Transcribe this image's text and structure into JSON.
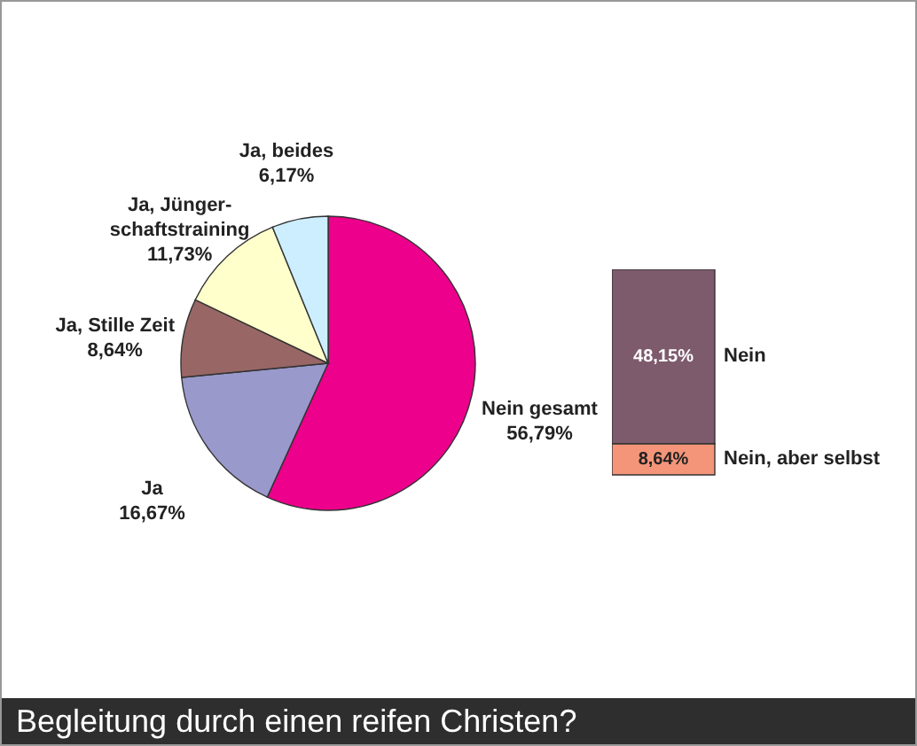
{
  "chart_data": [
    {
      "type": "pie",
      "title": "Begleitung durch einen reifen Christen?",
      "categories": [
        "Nein gesamt",
        "Ja",
        "Ja, Stille Zeit",
        "Ja, Jünger-schaftstraining",
        "Ja, beides"
      ],
      "values": [
        56.79,
        16.67,
        8.64,
        11.73,
        6.17
      ],
      "value_labels": [
        "56,79%",
        "16,67%",
        "8,64%",
        "11,73%",
        "6,17%"
      ],
      "colors": [
        "#ec008c",
        "#9999cc",
        "#996666",
        "#ffffcc",
        "#cceeff"
      ]
    },
    {
      "type": "bar",
      "stacked": true,
      "categories": [
        null
      ],
      "series": [
        {
          "name": "Nein, aber selbst",
          "color": "#f4957a",
          "values": [
            8.64
          ],
          "value_labels": [
            "8,64%"
          ]
        },
        {
          "name": "Nein",
          "color": "#7d5a6c",
          "values": [
            48.15
          ],
          "value_labels": [
            "48,15%"
          ]
        }
      ],
      "tick_labels": false
    }
  ]
}
